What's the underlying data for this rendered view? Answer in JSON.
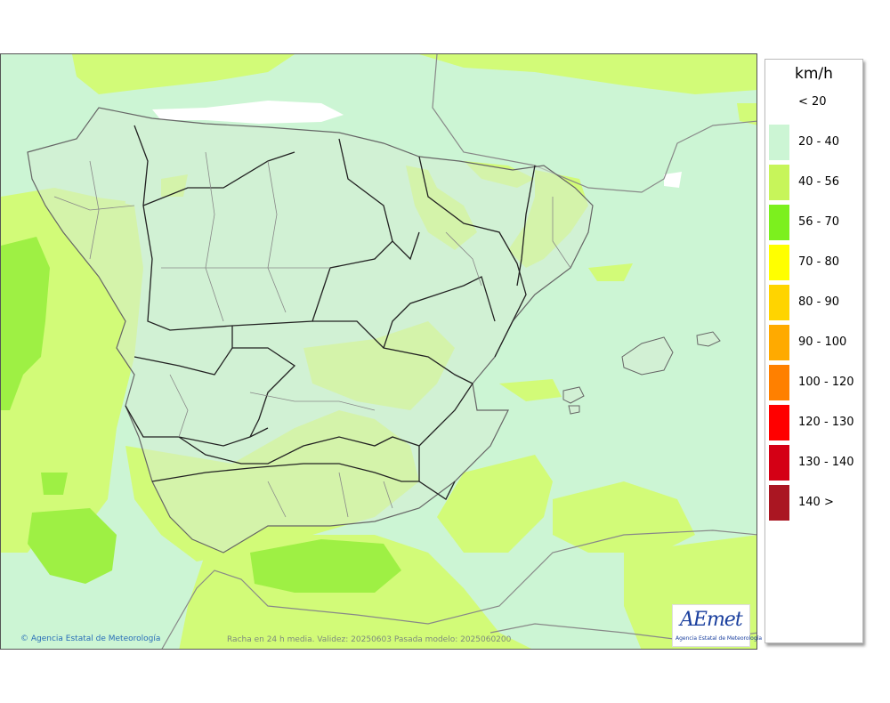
{
  "map": {
    "credit": "Agencia Estatal de Meteorología",
    "caption": "Racha en 24 h media. Validez: 20250603 Pasada modelo: 2025060200"
  },
  "legend": {
    "unit": "km/h",
    "items": [
      {
        "label": "< 20",
        "color": "#ffffff"
      },
      {
        "label": "20 - 40",
        "color": "#ccf5d4"
      },
      {
        "label": "40 - 56",
        "color": "#c7f55a"
      },
      {
        "label": "56 - 70",
        "color": "#7cf01e"
      },
      {
        "label": "70 - 80",
        "color": "#ffff00"
      },
      {
        "label": "80 - 90",
        "color": "#ffd400"
      },
      {
        "label": "90 - 100",
        "color": "#ffaa00"
      },
      {
        "label": "100 - 120",
        "color": "#ff8000"
      },
      {
        "label": "120 - 130",
        "color": "#ff0000"
      },
      {
        "label": "130 - 140",
        "color": "#d40015"
      },
      {
        "label": "140 >",
        "color": "#aa1622"
      }
    ]
  },
  "logo": {
    "word": "AEmet",
    "subtitle": "Agencia Estatal de Meteorología"
  }
}
